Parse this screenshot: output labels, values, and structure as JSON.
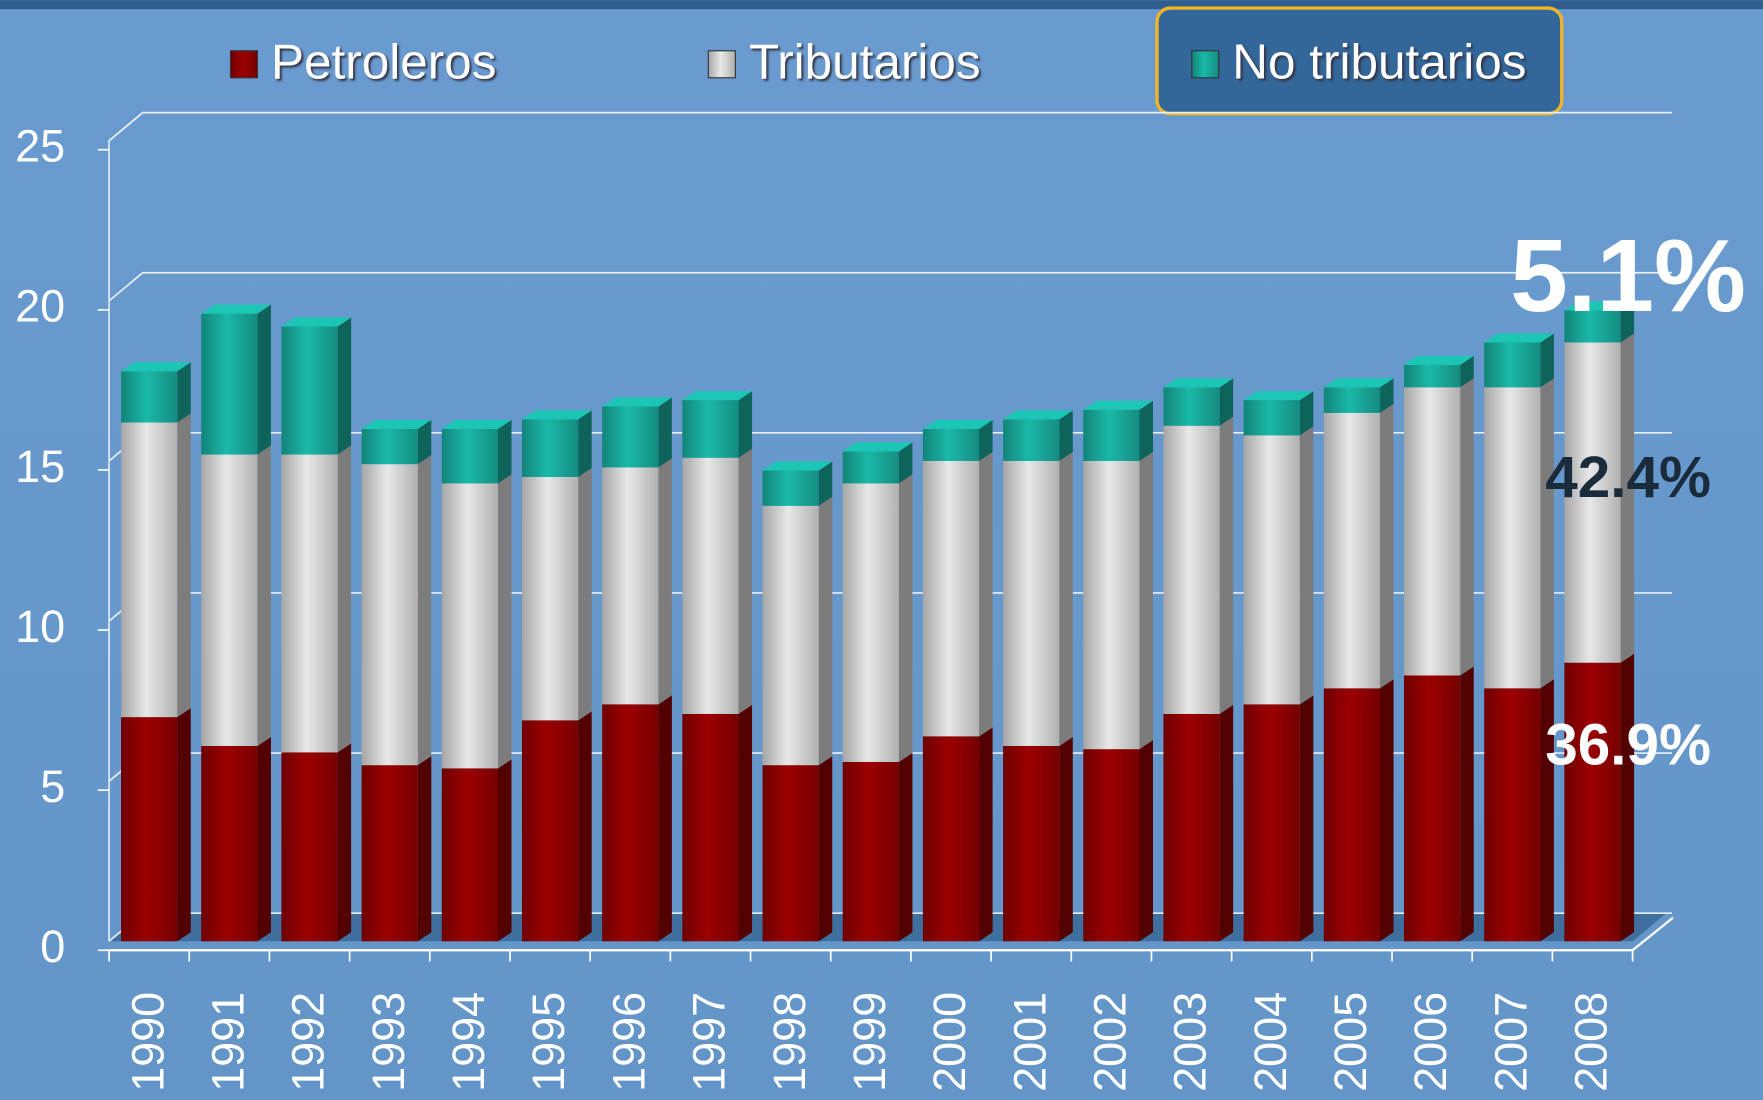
{
  "chart_data": {
    "type": "bar",
    "categories": [
      "1990",
      "1991",
      "1992",
      "1993",
      "1994",
      "1995",
      "1996",
      "1997",
      "1998",
      "1999",
      "2000",
      "2001",
      "2002",
      "2003",
      "2004",
      "2005",
      "2006",
      "2007",
      "2008"
    ],
    "series": [
      {
        "name": "Petroleros",
        "color": "#8b0000",
        "values": [
          7.0,
          6.1,
          5.9,
          5.5,
          5.4,
          6.9,
          7.4,
          7.1,
          5.5,
          5.6,
          6.4,
          6.1,
          6.0,
          7.1,
          7.4,
          7.9,
          8.3,
          7.9,
          8.7
        ]
      },
      {
        "name": "Tributarios",
        "color": "#cfcfcf",
        "values": [
          9.2,
          9.1,
          9.3,
          9.4,
          8.9,
          7.6,
          7.4,
          8.0,
          8.1,
          8.7,
          8.6,
          8.9,
          9.0,
          9.0,
          8.4,
          8.6,
          9.0,
          9.4,
          10.0
        ]
      },
      {
        "name": "No tributarios",
        "color": "#17a597",
        "values": [
          1.6,
          4.4,
          4.0,
          1.1,
          1.7,
          1.8,
          1.9,
          1.8,
          1.1,
          1.0,
          1.0,
          1.3,
          1.6,
          1.2,
          1.1,
          0.8,
          0.7,
          1.4,
          1.0
        ]
      }
    ],
    "stacked": true,
    "ylim": [
      0,
      25
    ],
    "yticks": [
      0,
      5,
      10,
      15,
      20,
      25
    ],
    "grid": true,
    "annotations": [
      "5.1%",
      "42.4%",
      "36.9%"
    ]
  }
}
